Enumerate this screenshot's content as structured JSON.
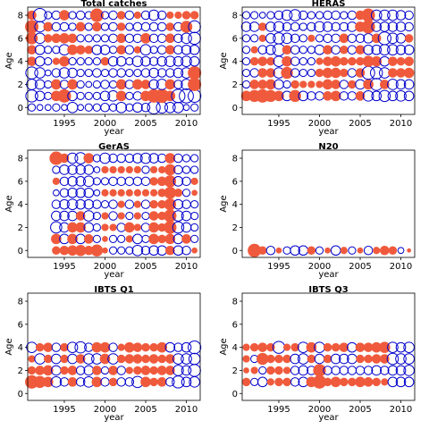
{
  "figure": {
    "xlabel": "year",
    "ylabel": "Age",
    "x_ticks": [
      1995,
      2000,
      2005,
      2010
    ],
    "y_ticks": [
      0,
      2,
      4,
      6,
      8
    ],
    "xlim": [
      1990.5,
      2011.7
    ],
    "ylim": [
      -0.6,
      8.7
    ],
    "colors": {
      "positive": "#f05a3c",
      "negative": "#0000cc"
    }
  },
  "chart_data": [
    {
      "type": "scatter",
      "title": "Total catches",
      "years": [
        1991,
        2011
      ],
      "ages": [
        0,
        8
      ],
      "residuals": [
        [
          -0.3,
          -0.2,
          -0.2,
          -0.3,
          -0.2,
          -0.6,
          -0.2,
          -0.3,
          -0.3,
          -0.4,
          -0.3,
          -0.6,
          -0.3,
          -0.5,
          -0.4,
          -0.9,
          -0.7,
          -0.6,
          -0.6,
          -0.2,
          -0.3
        ],
        [
          -0.8,
          -0.5,
          -0.3,
          0.6,
          1.0,
          -0.5,
          -0.3,
          -0.3,
          -0.3,
          -0.5,
          -0.6,
          0.6,
          -0.3,
          -0.4,
          0.6,
          1.0,
          1.1,
          0.6,
          -1.0,
          -1.1,
          -0.9
        ],
        [
          -0.6,
          -0.5,
          -0.3,
          0.6,
          -0.4,
          0.6,
          -0.3,
          -0.2,
          -0.3,
          -0.4,
          -0.3,
          0.6,
          -0.4,
          0.6,
          0.5,
          -0.5,
          -0.6,
          0.6,
          -0.4,
          -0.6,
          1.0
        ],
        [
          -0.8,
          -0.6,
          -0.2,
          -0.4,
          -0.6,
          -0.5,
          -0.3,
          -0.3,
          -0.4,
          -0.3,
          -0.4,
          -0.4,
          -0.3,
          -0.3,
          -0.4,
          -0.5,
          -0.4,
          -0.4,
          -0.5,
          -0.6,
          1.0
        ],
        [
          0.5,
          -0.5,
          -0.3,
          0.3,
          0.6,
          -0.3,
          -0.3,
          -0.3,
          -0.3,
          0.4,
          -0.5,
          -0.5,
          -0.3,
          -0.6,
          -0.5,
          -0.4,
          -0.5,
          -0.6,
          -0.5,
          -0.6,
          -0.5
        ],
        [
          0.5,
          -0.5,
          -0.3,
          -0.3,
          -0.6,
          0.6,
          0.5,
          0.4,
          -0.5,
          -0.5,
          -0.3,
          0.5,
          -0.4,
          0.3,
          -0.6,
          -0.3,
          -0.4,
          0.5,
          -0.4,
          -0.5,
          -0.5
        ],
        [
          0.8,
          -0.6,
          0.4,
          0.5,
          0.6,
          0.5,
          -0.3,
          -0.3,
          -0.3,
          -0.3,
          -0.4,
          0.5,
          -0.4,
          -0.4,
          0.6,
          -0.4,
          -0.4,
          0.5,
          -0.4,
          -0.6,
          -0.8
        ],
        [
          1.0,
          -0.6,
          0.5,
          -0.4,
          -0.4,
          -0.3,
          0.5,
          -0.3,
          0.5,
          -0.3,
          -0.4,
          0.4,
          -0.3,
          -0.4,
          -0.4,
          -0.4,
          -0.4,
          0.4,
          -0.4,
          0.8,
          -0.8
        ],
        [
          0.5,
          -1.0,
          -0.3,
          -0.4,
          0.6,
          -0.3,
          -0.4,
          -0.3,
          1.0,
          -0.3,
          -0.4,
          0.4,
          -0.4,
          0.3,
          -0.4,
          -0.6,
          -0.4,
          0.3,
          0.3,
          0.4,
          0.4
        ]
      ]
    },
    {
      "type": "scatter",
      "title": "HERAS",
      "years": [
        1991,
        2011
      ],
      "ages": [
        1,
        8
      ],
      "residuals": [
        [
          0.6,
          0.8,
          1.0,
          0.8,
          0.6,
          -0.5,
          0.8,
          -0.5,
          -0.4,
          -0.4,
          0.5,
          0.6,
          -0.4,
          -0.4,
          0.5,
          -0.6,
          -0.5,
          -0.7,
          -0.5,
          -0.6,
          -0.5
        ],
        [
          -0.3,
          0.5,
          0.5,
          0.6,
          -0.5,
          -0.3,
          0.4,
          0.3,
          0.3,
          0.3,
          0.6,
          0.5,
          -0.4,
          0.4,
          -0.5,
          0.6,
          -0.8,
          0.5,
          -0.6,
          -0.5,
          -0.5
        ],
        [
          -0.3,
          -0.4,
          0.5,
          0.5,
          -0.6,
          0.8,
          -0.4,
          -0.3,
          -0.3,
          0.4,
          0.6,
          0.6,
          0.4,
          -0.4,
          0.5,
          -0.9,
          -0.8,
          -0.6,
          0.5,
          0.5,
          0.6
        ],
        [
          -0.3,
          0.4,
          0.5,
          0.4,
          -0.6,
          0.6,
          -0.4,
          -0.3,
          -0.3,
          0.3,
          0.5,
          0.6,
          0.4,
          0.4,
          0.4,
          0.7,
          0.6,
          -0.5,
          0.5,
          0.4,
          0.5
        ],
        [
          -0.3,
          0.3,
          -0.4,
          -0.5,
          -0.8,
          0.5,
          -0.4,
          -0.3,
          -0.3,
          -0.5,
          0.5,
          -0.4,
          0.4,
          -0.4,
          0.5,
          -0.5,
          -0.5,
          -0.6,
          -0.6,
          -0.5,
          -0.5
        ],
        [
          -0.3,
          -0.3,
          0.3,
          -0.5,
          -0.7,
          -0.6,
          -0.4,
          -0.3,
          0.3,
          -0.3,
          -0.4,
          -0.4,
          0.5,
          -0.4,
          -0.4,
          -0.5,
          0.5,
          -0.9,
          -0.6,
          -0.5,
          0.4
        ],
        [
          -0.5,
          -0.5,
          0.4,
          -0.5,
          -0.6,
          -0.4,
          -0.4,
          -0.3,
          -0.4,
          -0.6,
          -0.5,
          -0.4,
          -0.4,
          -0.5,
          0.6,
          1.0,
          -0.5,
          -0.5,
          -0.5,
          -0.5,
          -0.4
        ],
        [
          -0.3,
          -0.3,
          -0.2,
          -0.3,
          -0.4,
          -0.6,
          -0.7,
          -0.4,
          -0.3,
          -0.3,
          -0.4,
          -0.4,
          -0.3,
          -0.4,
          0.5,
          1.0,
          -0.6,
          -0.6,
          -0.6,
          -0.5,
          -0.4
        ]
      ]
    },
    {
      "type": "scatter",
      "title": "GerAS",
      "years": [
        1994,
        2011
      ],
      "ages": [
        0,
        8
      ],
      "residuals": [
        [
          0.4,
          0.5,
          0.6,
          0.7,
          0.5,
          0.8,
          0.2,
          -0.3,
          -0.3,
          -0.3,
          -0.6,
          -0.4,
          -0.5,
          -0.5,
          0.5,
          -0.5,
          -0.4,
          0.2
        ],
        [
          0.6,
          -0.5,
          0.6,
          -0.5,
          0.5,
          -0.3,
          0.2,
          -0.3,
          -0.3,
          0.3,
          -0.5,
          -0.3,
          0.6,
          0.4,
          0.6,
          -0.5,
          0.5,
          -0.3
        ],
        [
          -0.7,
          -0.5,
          0.6,
          0.6,
          -0.5,
          -0.3,
          0.3,
          0.3,
          -0.4,
          0.6,
          0.3,
          -0.4,
          0.6,
          0.4,
          0.9,
          -0.7,
          -0.5,
          -0.3
        ],
        [
          -0.5,
          -0.5,
          -0.5,
          0.5,
          -0.6,
          -0.3,
          0.3,
          -0.4,
          0.3,
          -0.3,
          0.3,
          -0.3,
          0.5,
          0.4,
          0.9,
          -0.6,
          -0.5,
          -0.3
        ],
        [
          -0.4,
          -0.5,
          -0.6,
          -0.5,
          -0.5,
          -0.4,
          -0.3,
          -0.4,
          0.3,
          -0.4,
          0.3,
          -0.4,
          0.4,
          0.4,
          0.8,
          -0.5,
          -0.4,
          -0.3
        ],
        [
          -0.2,
          -0.4,
          -0.5,
          -0.5,
          -0.5,
          -0.2,
          0.3,
          0.3,
          0.3,
          0.3,
          0.3,
          0.3,
          0.3,
          0.4,
          0.8,
          0.4,
          -0.3,
          0.2
        ],
        [
          0.3,
          -0.4,
          -0.5,
          -0.5,
          -0.6,
          -0.3,
          -0.3,
          -0.4,
          -0.4,
          -0.4,
          -0.4,
          -0.4,
          0.4,
          0.5,
          0.8,
          -0.5,
          -0.4,
          0.3
        ],
        [
          -0.3,
          -0.5,
          -0.5,
          -0.5,
          -0.5,
          -0.2,
          0.3,
          0.3,
          0.3,
          0.3,
          0.3,
          -0.3,
          0.3,
          0.3,
          0.7,
          -0.4,
          -0.3,
          -0.3
        ],
        [
          1.0,
          0.5,
          -0.6,
          -0.7,
          0.6,
          -0.3,
          -0.6,
          -0.4,
          -0.4,
          -0.4,
          -0.5,
          -0.6,
          -0.5,
          -0.4,
          0.6,
          -0.4,
          -0.3,
          -0.3
        ]
      ]
    },
    {
      "type": "scatter",
      "title": "N20",
      "years": [
        1992,
        2011
      ],
      "ages": [
        0,
        0
      ],
      "residuals": [
        [
          1.0,
          0.4,
          -0.4,
          0.2,
          -0.3,
          -0.5,
          -0.5,
          0.4,
          -0.3,
          0.2,
          -0.5,
          0.3,
          -0.3,
          0.2,
          -0.4,
          0.3,
          0.5,
          0.4,
          -0.2,
          0.1
        ]
      ]
    },
    {
      "type": "scatter",
      "title": "IBTS Q1",
      "years": [
        1991,
        2011
      ],
      "ages": [
        1,
        4
      ],
      "residuals": [
        [
          1.0,
          0.8,
          0.6,
          -0.6,
          -0.4,
          0.5,
          -0.4,
          -0.6,
          0.6,
          -0.4,
          0.4,
          -0.4,
          -0.4,
          -0.7,
          0.6,
          0.4,
          0.5,
          -0.4,
          -0.8,
          -0.5,
          -0.6
        ],
        [
          0.4,
          0.5,
          0.6,
          -0.5,
          0.4,
          0.5,
          -0.4,
          -0.5,
          0.5,
          -0.3,
          0.5,
          -0.4,
          0.3,
          0.4,
          0.5,
          0.4,
          0.5,
          0.5,
          -0.6,
          -0.5,
          -0.8
        ],
        [
          0.3,
          -0.6,
          0.4,
          -0.5,
          0.4,
          -0.5,
          0.5,
          -0.6,
          -0.6,
          0.6,
          -0.6,
          0.4,
          0.5,
          0.5,
          0.4,
          0.5,
          0.4,
          0.5,
          -0.6,
          -0.6,
          -0.7
        ],
        [
          -0.6,
          0.4,
          0.5,
          -0.4,
          0.4,
          -0.6,
          -0.7,
          -0.4,
          0.6,
          0.6,
          -0.4,
          0.3,
          0.6,
          0.5,
          0.4,
          0.4,
          0.6,
          -0.5,
          -0.4,
          -0.5,
          -0.9
        ]
      ]
    },
    {
      "type": "scatter",
      "title": "IBTS Q3",
      "years": [
        1991,
        2011
      ],
      "ages": [
        1,
        4
      ],
      "residuals": [
        [
          0.4,
          -0.3,
          -0.5,
          0.3,
          0.4,
          0.4,
          -0.4,
          -0.5,
          0.6,
          1.0,
          0.4,
          0.6,
          0.4,
          0.4,
          0.6,
          0.5,
          0.4,
          0.3,
          -0.5,
          -0.5,
          -0.5
        ],
        [
          0.2,
          0.3,
          -0.3,
          0.4,
          0.4,
          0.3,
          -0.4,
          -0.5,
          -0.4,
          0.9,
          -0.4,
          -0.4,
          -0.4,
          -0.4,
          -0.4,
          -0.4,
          -0.5,
          -0.4,
          -0.5,
          -0.5,
          -0.6
        ],
        [
          0.3,
          -0.3,
          0.8,
          0.4,
          0.4,
          0.4,
          -0.5,
          -0.6,
          0.4,
          -0.5,
          0.4,
          -0.5,
          -0.5,
          -0.5,
          0.4,
          0.4,
          0.5,
          0.5,
          -0.7,
          -0.6,
          -0.6
        ],
        [
          0.3,
          0.4,
          0.5,
          0.4,
          -0.8,
          0.3,
          0.4,
          -0.6,
          0.6,
          -0.6,
          0.4,
          0.4,
          0.5,
          -0.5,
          0.5,
          0.5,
          0.6,
          0.7,
          -0.6,
          -0.5,
          -0.6
        ]
      ]
    }
  ]
}
